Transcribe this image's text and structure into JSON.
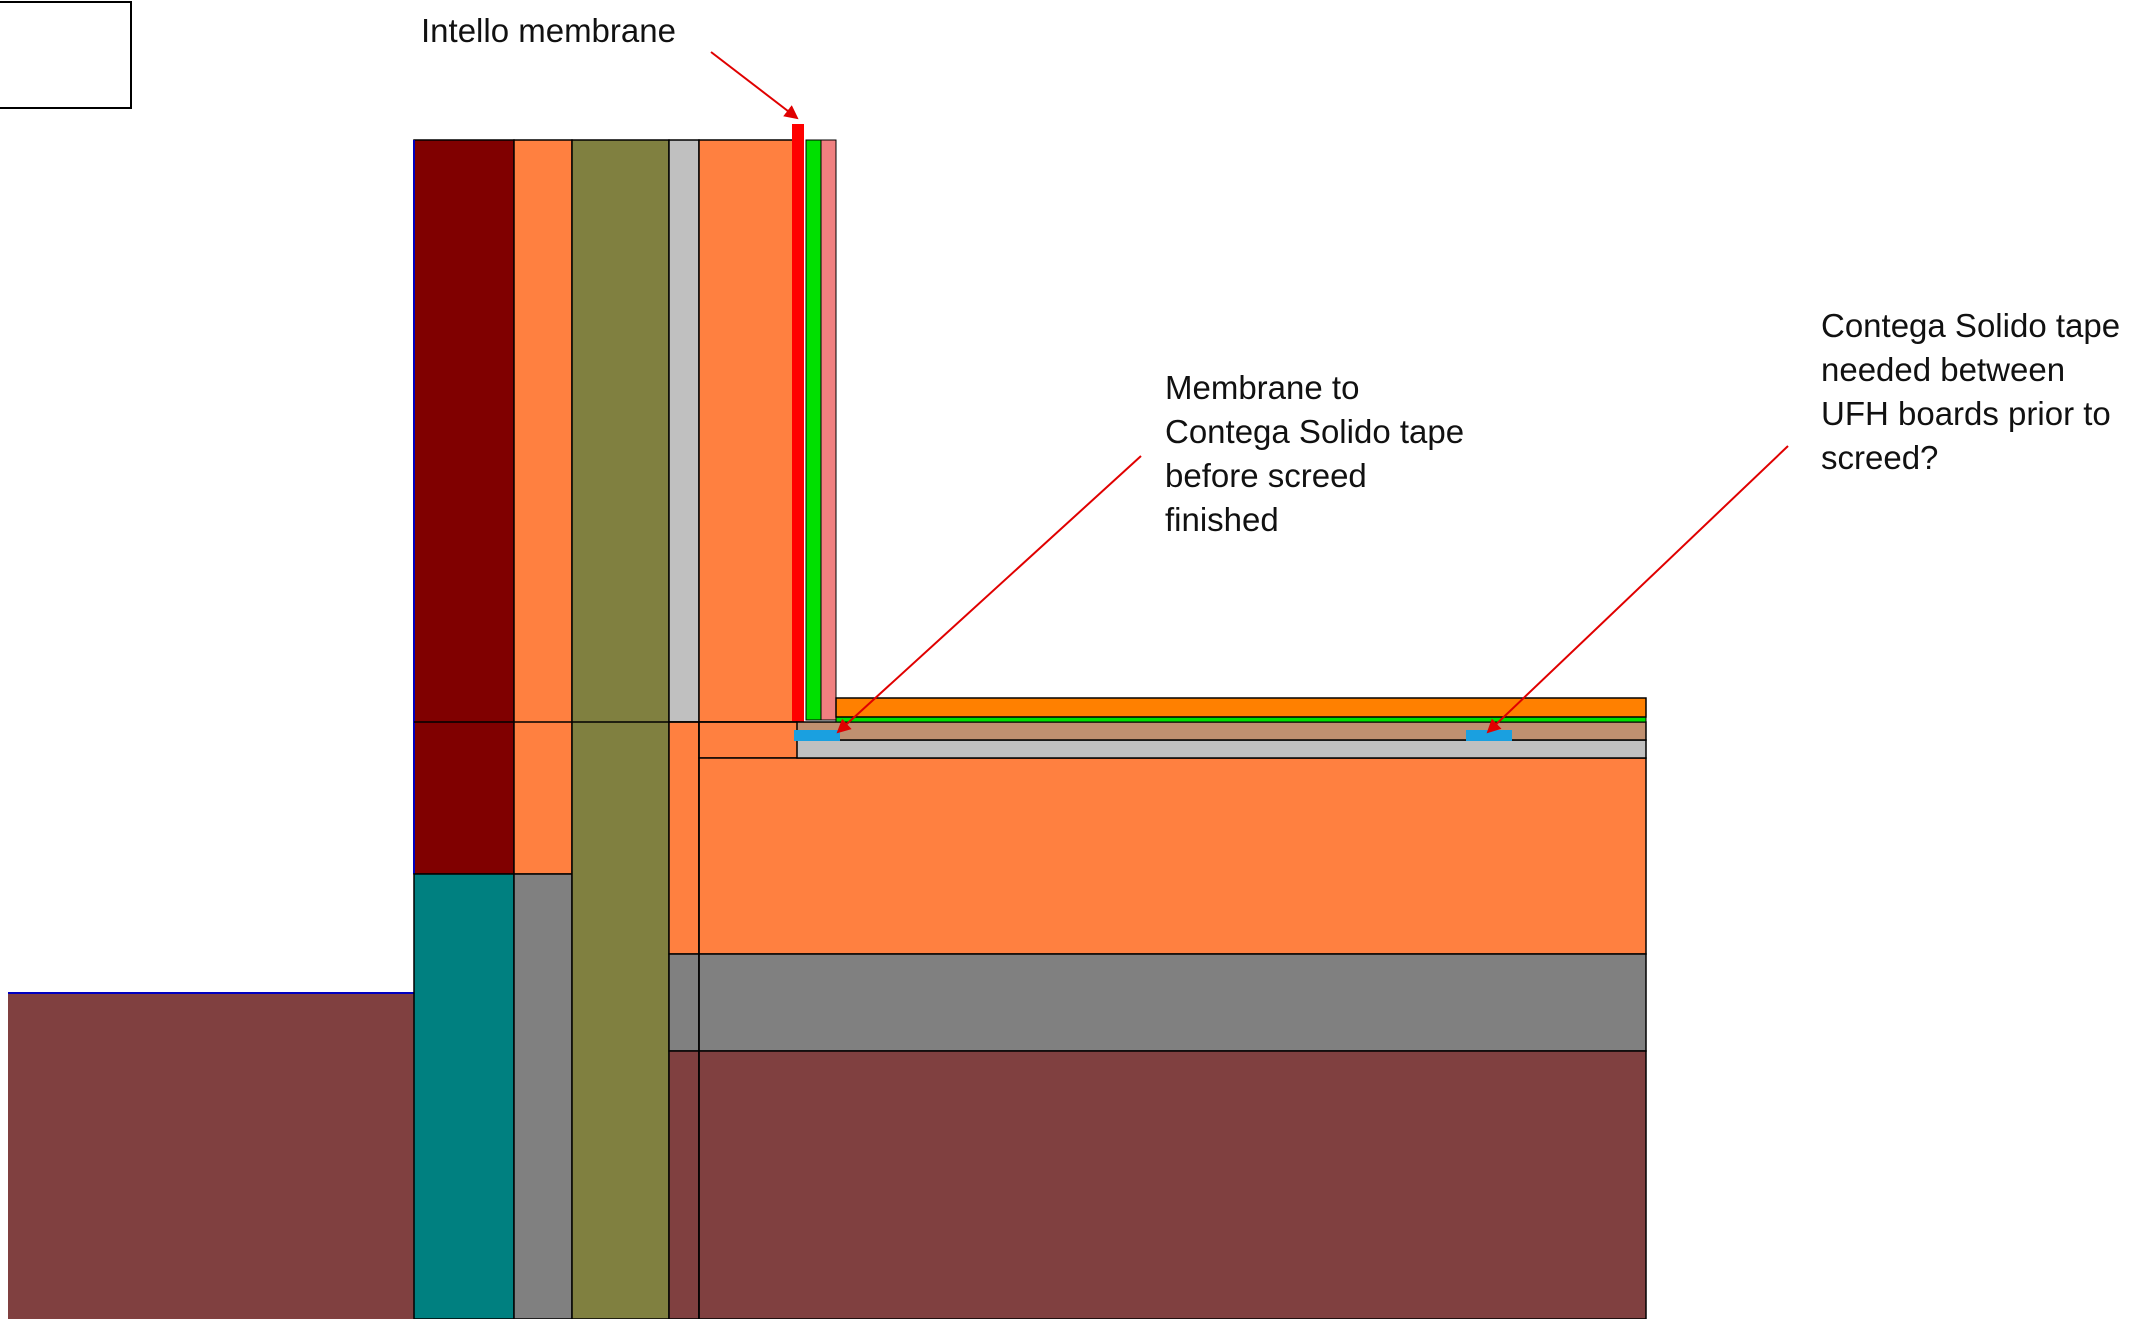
{
  "annotations": {
    "intello": {
      "lines": [
        "Intello membrane"
      ]
    },
    "membrane_tape": {
      "lines": [
        "Membrane to",
        "Contega Solido tape",
        "before screed",
        "finished"
      ]
    },
    "ufh_tape": {
      "lines": [
        "Contega Solido tape",
        "needed between",
        "UFH boards prior to",
        "screed?"
      ]
    }
  },
  "colors": {
    "brick": "#800000",
    "insulation": "#FF8040",
    "cavity_fill": "#808040",
    "plasterboard": "#C0C0C0",
    "membrane": "#FF0000",
    "membrane_green": "#00E000",
    "lining_pink": "#F08080",
    "blockwork": "#008080",
    "concrete": "#808080",
    "ground": "#804040",
    "screed": "#C09070",
    "tape": "#1AA0E0",
    "floor_finish": "#FF8000",
    "outline": "#000000",
    "arrow": "#E00000"
  }
}
